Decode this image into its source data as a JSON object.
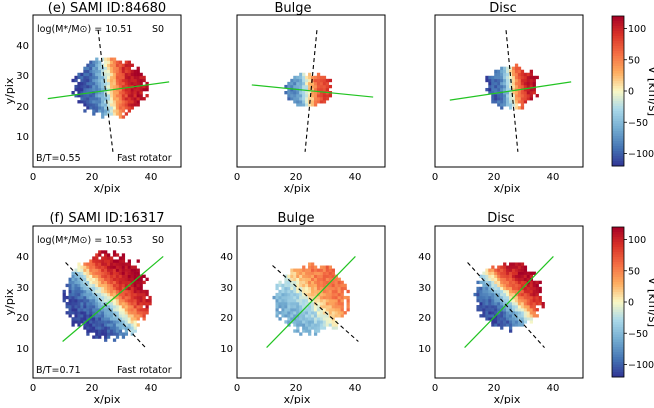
{
  "chart_data": [
    {
      "type": "heatmap",
      "panel": "row1-total",
      "title": "(e) SAMI ID:84680",
      "xlabel": "x/pix",
      "ylabel": "y/pix",
      "xlim": [
        0,
        50
      ],
      "ylim": [
        0,
        50
      ],
      "xticks": [
        "0",
        "20",
        "40"
      ],
      "yticks": [
        "10",
        "20",
        "30",
        "40"
      ],
      "annotations": {
        "mass": "log(M*/M⊙) = 10.51",
        "morph": "S0",
        "bt": "B/T=0.55",
        "rotator": "Fast rotator"
      },
      "galaxy": {
        "cx": 26,
        "cy": 26,
        "rx": 12,
        "ry": 9.5,
        "kinematic_pa_slope": 0.14,
        "amplitude": 115
      },
      "green_line": [
        [
          5,
          22.5
        ],
        [
          46,
          28
        ]
      ],
      "black_dashed": [
        [
          22,
          45
        ],
        [
          27,
          5
        ]
      ]
    },
    {
      "type": "heatmap",
      "panel": "row1-bulge",
      "title": "Bulge",
      "xlabel": "x/pix",
      "ylabel": "",
      "xlim": [
        0,
        50
      ],
      "ylim": [
        0,
        50
      ],
      "xticks": [
        "0",
        "20",
        "40"
      ],
      "yticks": [],
      "galaxy": {
        "cx": 24,
        "cy": 25.5,
        "rx": 8,
        "ry": 5.5,
        "kinematic_pa_slope": 0.1,
        "amplitude": 90
      },
      "green_line": [
        [
          5,
          27
        ],
        [
          46,
          23
        ]
      ],
      "black_dashed": [
        [
          27,
          45
        ],
        [
          23,
          5
        ]
      ]
    },
    {
      "type": "heatmap",
      "panel": "row1-disc",
      "title": "Disc",
      "xlabel": "x/pix",
      "ylabel": "",
      "xlim": [
        0,
        50
      ],
      "ylim": [
        0,
        50
      ],
      "xticks": [
        "0",
        "20",
        "40"
      ],
      "yticks": [],
      "galaxy": {
        "cx": 26,
        "cy": 26.5,
        "rx": 8.5,
        "ry": 7,
        "kinematic_pa_slope": 0.14,
        "amplitude": 110
      },
      "green_line": [
        [
          5,
          22
        ],
        [
          46,
          28
        ]
      ],
      "black_dashed": [
        [
          24,
          45
        ],
        [
          28,
          5
        ]
      ]
    },
    {
      "type": "heatmap",
      "panel": "row2-total",
      "title": "(f) SAMI ID:16317",
      "xlabel": "x/pix",
      "ylabel": "y/pix",
      "xlim": [
        0,
        50
      ],
      "ylim": [
        0,
        50
      ],
      "xticks": [
        "0",
        "20",
        "40"
      ],
      "yticks": [
        "10",
        "20",
        "30",
        "40"
      ],
      "annotations": {
        "mass": "log(M*/M⊙) = 10.53",
        "morph": "S0",
        "bt": "B/T=0.71",
        "rotator": "Fast rotator"
      },
      "galaxy": {
        "cx": 25,
        "cy": 27,
        "rx": 14,
        "ry": 14,
        "kinematic_pa_slope": 1.0,
        "amplitude": 120
      },
      "green_line": [
        [
          10,
          12
        ],
        [
          44,
          40
        ]
      ],
      "black_dashed": [
        [
          11,
          38
        ],
        [
          38,
          10
        ]
      ]
    },
    {
      "type": "heatmap",
      "panel": "row2-bulge",
      "title": "Bulge",
      "xlabel": "x/pix",
      "ylabel": "",
      "xlim": [
        0,
        50
      ],
      "ylim": [
        0,
        50
      ],
      "xticks": [
        "0",
        "20",
        "40"
      ],
      "yticks": [
        "10",
        "20",
        "30",
        "40"
      ],
      "galaxy": {
        "cx": 25,
        "cy": 26,
        "rx": 12,
        "ry": 11,
        "kinematic_pa_slope": 1.0,
        "amplitude": 60
      },
      "green_line": [
        [
          10,
          10
        ],
        [
          40,
          40
        ]
      ],
      "black_dashed": [
        [
          12,
          37
        ],
        [
          41,
          12
        ]
      ]
    },
    {
      "type": "heatmap",
      "panel": "row2-disc",
      "title": "Disc",
      "xlabel": "x/pix",
      "ylabel": "",
      "xlim": [
        0,
        50
      ],
      "ylim": [
        0,
        50
      ],
      "xticks": [
        "0",
        "20",
        "40"
      ],
      "yticks": [
        "10",
        "20",
        "30",
        "40"
      ],
      "galaxy": {
        "cx": 25,
        "cy": 27,
        "rx": 11,
        "ry": 11,
        "kinematic_pa_slope": 1.0,
        "amplitude": 115
      },
      "green_line": [
        [
          10,
          10
        ],
        [
          40,
          40
        ]
      ],
      "black_dashed": [
        [
          11,
          38
        ],
        [
          37,
          10
        ]
      ]
    },
    {
      "type": "colorbar",
      "label": "V [km/s]",
      "range": [
        -120,
        120
      ],
      "ticks": [
        "100",
        "50",
        "0",
        "−50",
        "−100"
      ],
      "tick_values": [
        100,
        50,
        0,
        -50,
        -100
      ]
    }
  ]
}
